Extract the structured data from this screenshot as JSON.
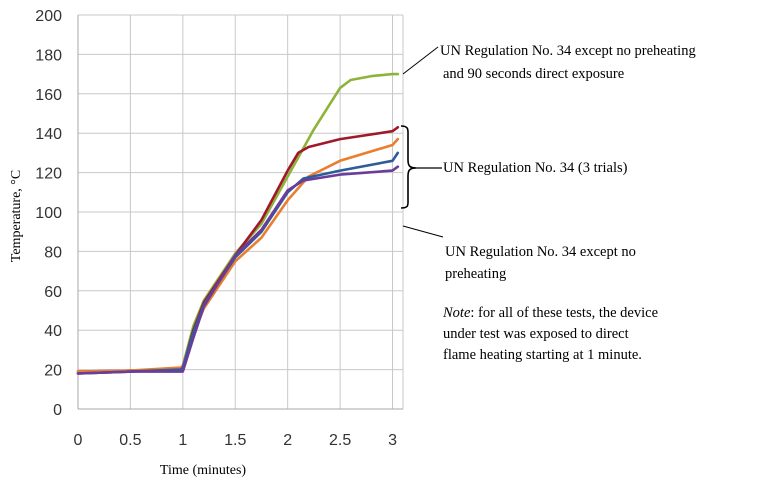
{
  "chart_data": {
    "type": "line",
    "title": "",
    "xlabel": "Time (minutes)",
    "ylabel": "Temperature, °C",
    "xlim": [
      0,
      3.1
    ],
    "ylim": [
      0,
      200
    ],
    "x_ticks": [
      0,
      0.5,
      1,
      1.5,
      2,
      2.5,
      3
    ],
    "x_tick_labels": [
      "0",
      "0.5",
      "1",
      "1.5",
      "2",
      "2.5",
      "3"
    ],
    "y_ticks": [
      0,
      20,
      40,
      60,
      80,
      100,
      120,
      140,
      160,
      180,
      200
    ],
    "y_tick_labels": [
      "0",
      "20",
      "40",
      "60",
      "80",
      "100",
      "120",
      "140",
      "160",
      "180",
      "200"
    ],
    "grid": true,
    "legend": "none",
    "series": [
      {
        "color": "#8db33a",
        "points": [
          [
            0,
            18
          ],
          [
            0.5,
            19
          ],
          [
            0.98,
            20
          ],
          [
            1.0,
            22
          ],
          [
            1.1,
            42
          ],
          [
            1.2,
            55
          ],
          [
            1.5,
            79
          ],
          [
            1.75,
            94
          ],
          [
            2.0,
            118
          ],
          [
            2.25,
            142
          ],
          [
            2.5,
            163
          ],
          [
            2.6,
            167
          ],
          [
            2.8,
            169
          ],
          [
            3.0,
            170
          ],
          [
            3.05,
            170
          ]
        ]
      },
      {
        "color": "#a0192a",
        "points": [
          [
            0,
            19
          ],
          [
            0.5,
            19.5
          ],
          [
            0.98,
            20
          ],
          [
            1.0,
            21
          ],
          [
            1.1,
            40
          ],
          [
            1.2,
            54
          ],
          [
            1.5,
            78
          ],
          [
            1.75,
            96
          ],
          [
            2.0,
            121
          ],
          [
            2.1,
            130
          ],
          [
            2.2,
            133
          ],
          [
            2.5,
            137
          ],
          [
            3.0,
            141
          ],
          [
            3.05,
            143
          ]
        ]
      },
      {
        "color": "#e87e2e",
        "points": [
          [
            0,
            19
          ],
          [
            0.5,
            19.5
          ],
          [
            0.98,
            21
          ],
          [
            1.0,
            22
          ],
          [
            1.1,
            38
          ],
          [
            1.2,
            51
          ],
          [
            1.5,
            75
          ],
          [
            1.75,
            87
          ],
          [
            2.0,
            106
          ],
          [
            2.2,
            118
          ],
          [
            2.5,
            126
          ],
          [
            3.0,
            134
          ],
          [
            3.05,
            137
          ]
        ]
      },
      {
        "color": "#2e5b9a",
        "points": [
          [
            0,
            18
          ],
          [
            0.5,
            19
          ],
          [
            0.98,
            20
          ],
          [
            1.0,
            21
          ],
          [
            1.1,
            39
          ],
          [
            1.2,
            53
          ],
          [
            1.5,
            77
          ],
          [
            1.75,
            90
          ],
          [
            2.0,
            110
          ],
          [
            2.15,
            117
          ],
          [
            2.5,
            121
          ],
          [
            3.0,
            126
          ],
          [
            3.05,
            130
          ]
        ]
      },
      {
        "color": "#6a3d9a",
        "points": [
          [
            0,
            18
          ],
          [
            0.5,
            19
          ],
          [
            0.98,
            19
          ],
          [
            1.0,
            19
          ],
          [
            1.1,
            36
          ],
          [
            1.2,
            52
          ],
          [
            1.5,
            78
          ],
          [
            1.75,
            91
          ],
          [
            2.0,
            111
          ],
          [
            2.15,
            116
          ],
          [
            2.5,
            119
          ],
          [
            3.0,
            121
          ],
          [
            3.05,
            123
          ]
        ]
      }
    ],
    "annotations": [
      {
        "lines": [
          "UN Regulation No. 34 except no preheating",
          "and 90 seconds direct exposure"
        ]
      },
      {
        "lines": [
          "UN Regulation No. 34 (3 trials)"
        ]
      },
      {
        "lines": [
          "UN Regulation No. 34 except no",
          "preheating"
        ]
      },
      {
        "italic_prefix": "Note",
        "lines": [
          ": for all of these tests, the device",
          "under test was exposed to direct",
          "flame heating starting at 1 minute."
        ]
      }
    ]
  }
}
